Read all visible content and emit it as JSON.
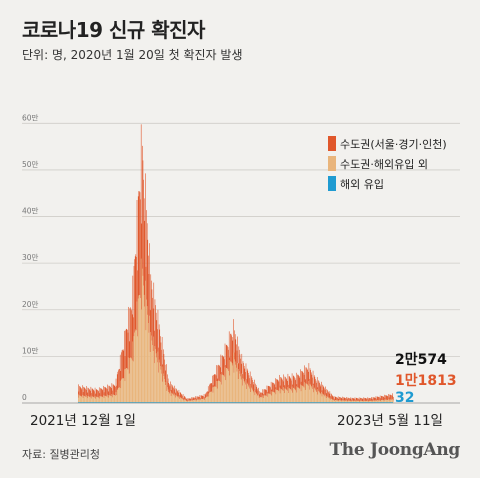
{
  "title": "코로나19 신규 확진자",
  "subtitle": "단위: 명, 2020년 1월 20일 첫 확진자 발생",
  "source": "자료: 질병관리청",
  "brand": "The JoongAng",
  "colors": {
    "capital": "#e0572b",
    "non_capital": "#e9b57c",
    "overseas": "#1f9bd1",
    "final_total": "#111111"
  },
  "chart_data": {
    "type": "area",
    "stacked": true,
    "ylim": [
      0,
      65
    ],
    "y_unit": "만",
    "yticks": [
      {
        "value": 0,
        "label": "0"
      },
      {
        "value": 10,
        "label": "10만"
      },
      {
        "value": 20,
        "label": "20만"
      },
      {
        "value": 30,
        "label": "30만"
      },
      {
        "value": 40,
        "label": "40만"
      },
      {
        "value": 50,
        "label": "50만"
      },
      {
        "value": 60,
        "label": "60만"
      }
    ],
    "grid": true,
    "legend_position": "top-right",
    "x_start_label": "2021년 12월 1일",
    "x_end_label": "2023년 5월 11일",
    "series": [
      {
        "name": "수도권(서울·경기·인천)",
        "key": "capital",
        "final_label": "1만1813",
        "final_value": 11813
      },
      {
        "name": "수도권·해외유입 외",
        "key": "non_capital"
      },
      {
        "name": "해외 유입",
        "key": "overseas",
        "final_label": "32",
        "final_value": 32
      }
    ],
    "final_total_label": "2만574",
    "final_total_value": 20574,
    "date_labels": [
      "2021-12-01",
      "2022-01-01",
      "2022-02-01",
      "2022-03-01",
      "2022-03-17",
      "2022-04-01",
      "2022-05-01",
      "2022-06-01",
      "2022-07-01",
      "2022-08-01",
      "2022-08-17",
      "2022-09-01",
      "2022-10-01",
      "2022-11-01",
      "2022-12-01",
      "2022-12-20",
      "2023-01-01",
      "2023-02-01",
      "2023-03-01",
      "2023-04-01",
      "2023-05-11"
    ],
    "total_values": [
      4.0,
      3.2,
      4.5,
      25.0,
      62.1,
      30.0,
      5.0,
      1.0,
      2.0,
      12.0,
      18.0,
      10.0,
      2.5,
      6.0,
      6.5,
      8.8,
      6.0,
      1.5,
      1.2,
      1.2,
      2.1
    ],
    "non_capital_share": [
      0.45,
      0.45,
      0.45,
      0.48,
      0.52,
      0.55,
      0.55,
      0.5,
      0.55,
      0.6,
      0.6,
      0.6,
      0.55,
      0.55,
      0.55,
      0.55,
      0.55,
      0.45,
      0.45,
      0.42,
      0.42
    ]
  }
}
